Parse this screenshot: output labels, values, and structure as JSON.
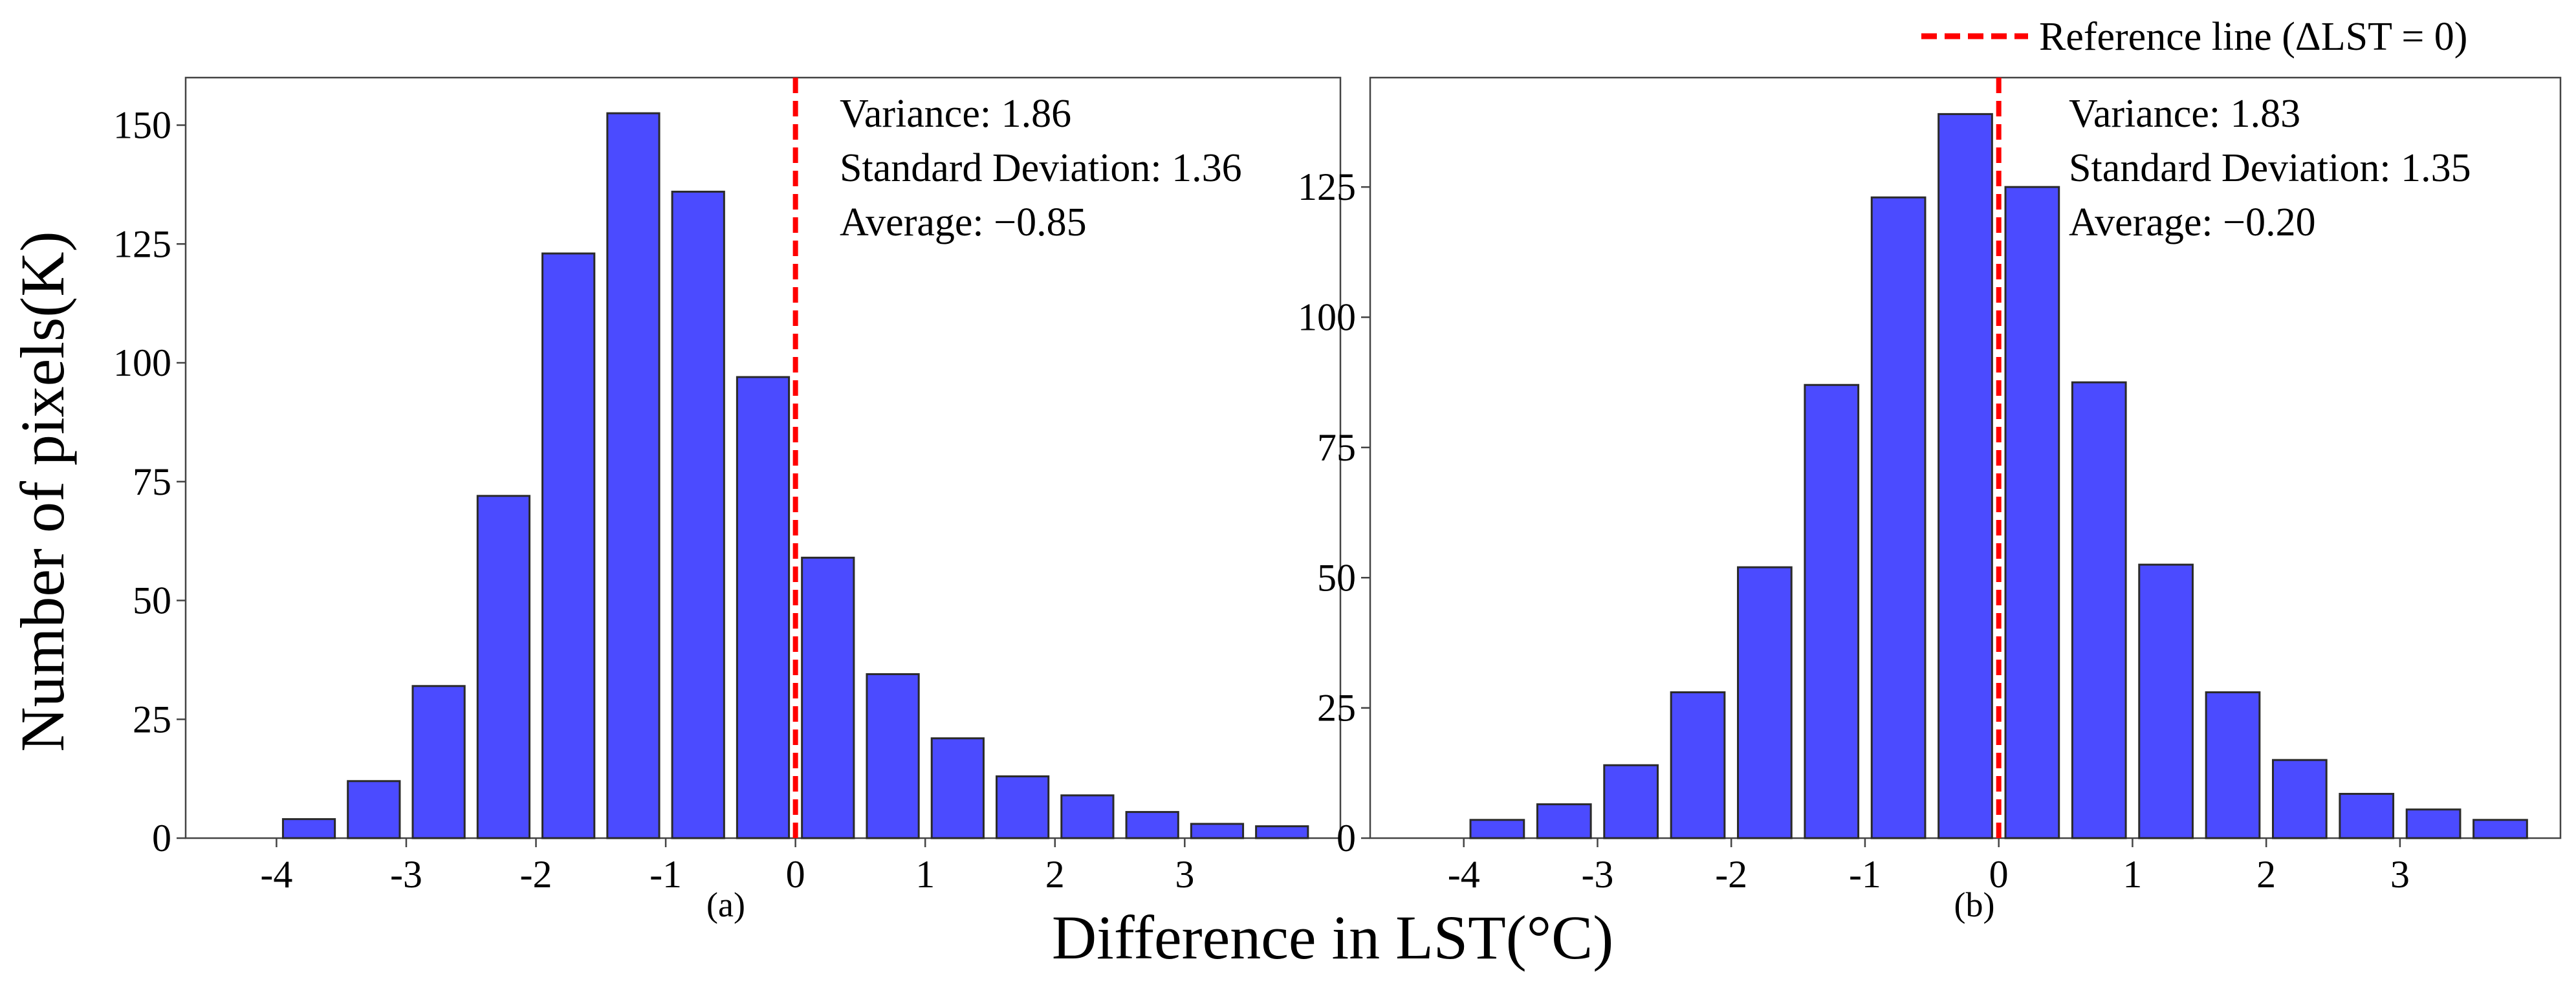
{
  "figure": {
    "ylabel": "Number of pixels(K)",
    "xlabel": "Difference in LST(°C)"
  },
  "legend": {
    "label": "Reference line (ΔLST = 0)",
    "line_color": "#ff0000"
  },
  "colors": {
    "bar_fill": "#4b4bff",
    "bar_edge": "#2a2a2a",
    "ref_line": "#ff0000"
  },
  "chart_data": [
    {
      "type": "bar",
      "panel_label": "(a)",
      "x": [
        -3.75,
        -3.25,
        -2.75,
        -2.25,
        -1.75,
        -1.25,
        -0.75,
        -0.25,
        0.25,
        0.75,
        1.25,
        1.75,
        2.25,
        2.75,
        3.25,
        3.75
      ],
      "values": [
        4,
        12,
        32,
        72,
        123,
        152.5,
        136,
        97,
        59,
        34.5,
        21,
        13,
        9,
        5.5,
        3,
        2.5
      ],
      "xlim": [
        -4.7,
        4.2
      ],
      "ylim": [
        0,
        160
      ],
      "xticks": [
        -4,
        -3,
        -2,
        -1,
        0,
        1,
        2,
        3
      ],
      "yticks": [
        0,
        25,
        50,
        75,
        100,
        125,
        150
      ],
      "reference_x": 0,
      "annotations": [
        "Variance: 1.86",
        "Standard Deviation: 1.36",
        "Average: −0.85"
      ]
    },
    {
      "type": "bar",
      "panel_label": "(b)",
      "x": [
        -3.75,
        -3.25,
        -2.75,
        -2.25,
        -1.75,
        -1.25,
        -0.75,
        -0.25,
        0.25,
        0.75,
        1.25,
        1.75,
        2.25,
        2.75,
        3.25,
        3.75
      ],
      "values": [
        3.5,
        6.5,
        14,
        28,
        52,
        87,
        123,
        139,
        125,
        87.5,
        52.5,
        28,
        15,
        8.5,
        5.5,
        3.5
      ],
      "xlim": [
        -4.7,
        4.2
      ],
      "ylim": [
        0,
        146
      ],
      "xticks": [
        -4,
        -3,
        -2,
        -1,
        0,
        1,
        2,
        3
      ],
      "yticks": [
        0,
        25,
        50,
        75,
        100,
        125
      ],
      "reference_x": 0,
      "annotations": [
        "Variance: 1.83",
        "Standard Deviation: 1.35",
        "Average: −0.20"
      ]
    }
  ]
}
